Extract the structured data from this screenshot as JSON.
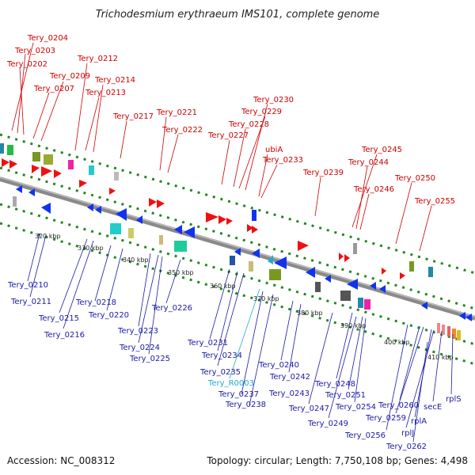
{
  "title": "Trichodesmium erythraeum IMS101, complete genome",
  "footer": {
    "accession": "Accession: NC_008312",
    "topology": "Topology: circular; Length: 7,750,108 bp; Genes: 4,498"
  },
  "colors": {
    "forward_label": "#cc0000",
    "reverse_label": "#1a1aa6",
    "rna_label": "#22aacc",
    "backbone": "#8a8a8a",
    "dots": "#228822"
  },
  "ticks": [
    "320 kbp",
    "330 kbp",
    "340 kbp",
    "350 kbp",
    "360 kbp",
    "370 kbp",
    "380 kbp",
    "390 kbp",
    "400 kbp",
    "410 kbp"
  ],
  "forward_labels": [
    "Tery_0204",
    "Tery_0203",
    "Tery_0202",
    "Tery_0212",
    "Tery_0209",
    "Tery_0207",
    "Tery_0214",
    "Tery_0213",
    "Tery_0217",
    "Tery_0221",
    "Tery_0222",
    "Tery_0230",
    "Tery_0229",
    "Tery_0228",
    "Tery_0227",
    "ubiA",
    "Tery_0233",
    "Tery_0239",
    "Tery_0245",
    "Tery_0244",
    "Tery_0246",
    "Tery_0250",
    "Tery_0255"
  ],
  "reverse_labels": [
    "Tery_0210",
    "Tery_0211",
    "Tery_0215",
    "Tery_0216",
    "Tery_0218",
    "Tery_0220",
    "Tery_0223",
    "Tery_0224",
    "Tery_0226",
    "Tery_0225",
    "Tery_0231",
    "Tery_0234",
    "Tery_0235",
    "Tery_R0003",
    "Tery_0237",
    "Tery_0238",
    "Tery_0240",
    "Tery_0242",
    "Tery_0243",
    "Tery_0248",
    "Tery_0247",
    "Tery_0251",
    "Tery_0254",
    "Tery_0249",
    "Tery_0256",
    "Tery_0260",
    "Tery_0259",
    "rplA",
    "secE",
    "rplS",
    "rplJ",
    "Tery_0262"
  ]
}
